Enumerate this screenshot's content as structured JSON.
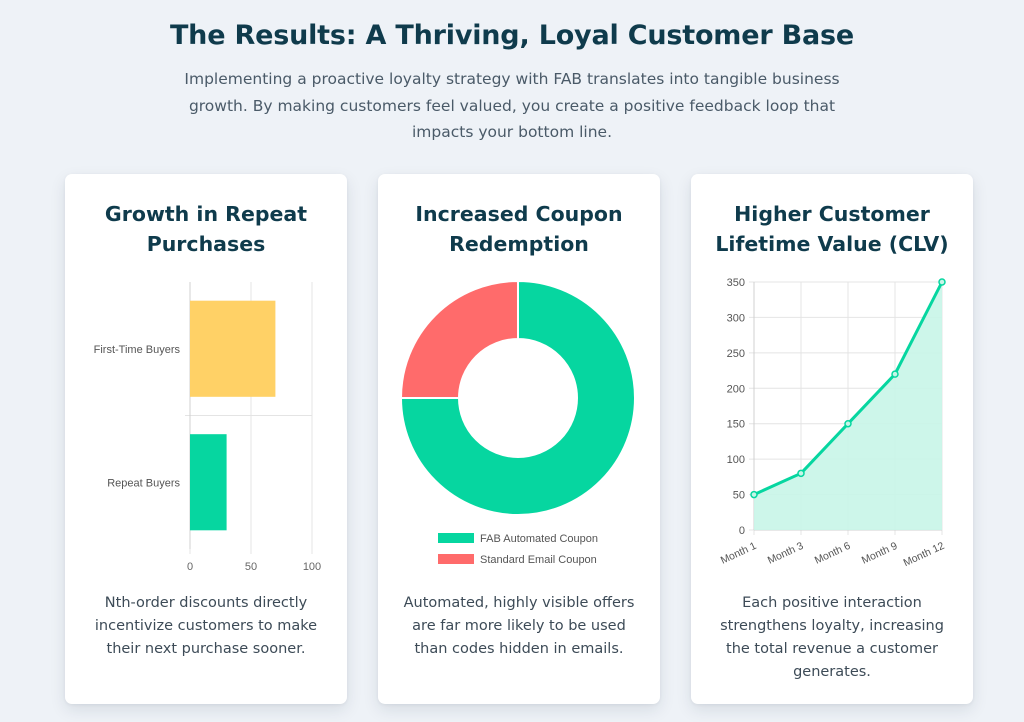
{
  "header": {
    "title": "The Results: A Thriving, Loyal Customer Base",
    "subtitle": "Implementing a proactive loyalty strategy with FAB translates into tangible business growth. By making customers feel valued, you create a positive feedback loop that impacts your bottom line."
  },
  "cards": [
    {
      "title": "Growth in Repeat Purchases",
      "description": "Nth-order discounts directly incentivize customers to make their next purchase sooner."
    },
    {
      "title": "Increased Coupon Redemption",
      "description": "Automated, highly visible offers are far more likely to be used than codes hidden in emails."
    },
    {
      "title": "Higher Customer Lifetime Value (CLV)",
      "description": "Each positive interaction strengthens loyalty, increasing the total revenue a customer generates."
    }
  ],
  "chart_data": [
    {
      "type": "bar",
      "orientation": "horizontal",
      "categories": [
        "First-Time Buyers",
        "Repeat Buyers"
      ],
      "values": [
        70,
        30
      ],
      "colors": [
        "#ffd166",
        "#06d6a0"
      ],
      "xlim": [
        0,
        100
      ],
      "xticks": [
        0,
        50,
        100
      ],
      "grid": true,
      "legend": "none"
    },
    {
      "type": "pie",
      "variant": "doughnut",
      "labels": [
        "FAB Automated Coupon",
        "Standard Email Coupon"
      ],
      "values": [
        75,
        25
      ],
      "colors": [
        "#06d6a0",
        "#ff6b6b"
      ],
      "legend": "bottom"
    },
    {
      "type": "area",
      "categories": [
        "Month 1",
        "Month 3",
        "Month 6",
        "Month 9",
        "Month 12"
      ],
      "values": [
        50,
        80,
        150,
        220,
        350
      ],
      "ylim": [
        0,
        350
      ],
      "yticks": [
        0,
        50,
        100,
        150,
        200,
        250,
        300,
        350
      ],
      "line_color": "#06d6a0",
      "fill_color": "#c8f5e8",
      "grid": true,
      "legend": "none"
    }
  ]
}
